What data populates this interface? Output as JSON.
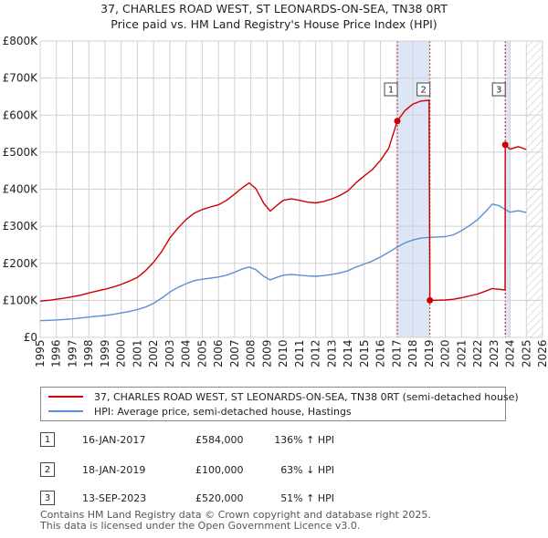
{
  "chart_data": {
    "type": "line",
    "title": "37, CHARLES ROAD WEST, ST LEONARDS-ON-SEA, TN38 0RT",
    "subtitle": "Price paid vs. HM Land Registry's House Price Index (HPI)",
    "xlim": [
      1995.0,
      2026.0
    ],
    "ylim": [
      0,
      800000
    ],
    "x_ticks": [
      1995,
      1996,
      1997,
      1998,
      1999,
      2000,
      2001,
      2002,
      2003,
      2004,
      2005,
      2006,
      2007,
      2008,
      2009,
      2010,
      2011,
      2012,
      2013,
      2014,
      2015,
      2016,
      2017,
      2018,
      2019,
      2020,
      2021,
      2022,
      2023,
      2024,
      2025,
      2026
    ],
    "y_ticks": [
      {
        "value": 0,
        "label": "£0"
      },
      {
        "value": 100000,
        "label": "£100K"
      },
      {
        "value": 200000,
        "label": "£200K"
      },
      {
        "value": 300000,
        "label": "£300K"
      },
      {
        "value": 400000,
        "label": "£400K"
      },
      {
        "value": 500000,
        "label": "£500K"
      },
      {
        "value": 600000,
        "label": "£600K"
      },
      {
        "value": 700000,
        "label": "£700K"
      },
      {
        "value": 800000,
        "label": "£800K"
      }
    ],
    "grid": true,
    "colors": {
      "property": "#cc0000",
      "hpi": "#5b8fd4",
      "shade": "#dde6f7",
      "marker_line": "#cc0000",
      "future_hatch": "#c5c5c5"
    },
    "shaded_spans": [
      [
        2017.04,
        2019.05
      ],
      [
        2023.7,
        2024.0
      ]
    ],
    "future_from": 2025.0,
    "series": [
      {
        "name": "HPI: Average price, semi-detached house, Hastings",
        "points": [
          [
            1995.0,
            45000
          ],
          [
            1995.5,
            46000
          ],
          [
            1996.0,
            47000
          ],
          [
            1996.5,
            48500
          ],
          [
            1997.0,
            50000
          ],
          [
            1997.5,
            52500
          ],
          [
            1998.0,
            55000
          ],
          [
            1998.5,
            57000
          ],
          [
            1999.0,
            59000
          ],
          [
            1999.5,
            62000
          ],
          [
            2000.0,
            66000
          ],
          [
            2000.5,
            70000
          ],
          [
            2001.0,
            75000
          ],
          [
            2001.5,
            82000
          ],
          [
            2002.0,
            92000
          ],
          [
            2002.5,
            106000
          ],
          [
            2003.0,
            122000
          ],
          [
            2003.5,
            135000
          ],
          [
            2004.0,
            145000
          ],
          [
            2004.5,
            153000
          ],
          [
            2005.0,
            157000
          ],
          [
            2005.5,
            160000
          ],
          [
            2006.0,
            163000
          ],
          [
            2006.5,
            168000
          ],
          [
            2007.0,
            176000
          ],
          [
            2007.5,
            185000
          ],
          [
            2007.9,
            190000
          ],
          [
            2008.3,
            183000
          ],
          [
            2008.8,
            165000
          ],
          [
            2009.2,
            155000
          ],
          [
            2009.6,
            162000
          ],
          [
            2010.0,
            168000
          ],
          [
            2010.5,
            170000
          ],
          [
            2011.0,
            168000
          ],
          [
            2011.5,
            166000
          ],
          [
            2012.0,
            165000
          ],
          [
            2012.5,
            167000
          ],
          [
            2013.0,
            170000
          ],
          [
            2013.5,
            174000
          ],
          [
            2014.0,
            180000
          ],
          [
            2014.5,
            190000
          ],
          [
            2015.0,
            198000
          ],
          [
            2015.5,
            206000
          ],
          [
            2016.0,
            217000
          ],
          [
            2016.5,
            230000
          ],
          [
            2017.0,
            243000
          ],
          [
            2017.5,
            255000
          ],
          [
            2018.0,
            263000
          ],
          [
            2018.5,
            268000
          ],
          [
            2019.0,
            270000
          ],
          [
            2019.5,
            271000
          ],
          [
            2020.0,
            272000
          ],
          [
            2020.5,
            277000
          ],
          [
            2021.0,
            288000
          ],
          [
            2021.5,
            302000
          ],
          [
            2022.0,
            318000
          ],
          [
            2022.5,
            340000
          ],
          [
            2022.9,
            360000
          ],
          [
            2023.3,
            356000
          ],
          [
            2023.7,
            345000
          ],
          [
            2024.0,
            338000
          ],
          [
            2024.5,
            342000
          ],
          [
            2025.0,
            337000
          ]
        ]
      },
      {
        "name": "37, CHARLES ROAD WEST, ST LEONARDS-ON-SEA, TN38 0RT (semi-detached house)",
        "points": [
          [
            1995.0,
            98000
          ],
          [
            1995.5,
            100000
          ],
          [
            1996.0,
            103000
          ],
          [
            1996.5,
            106000
          ],
          [
            1997.0,
            110000
          ],
          [
            1997.5,
            114000
          ],
          [
            1998.0,
            120000
          ],
          [
            1998.5,
            125000
          ],
          [
            1999.0,
            130000
          ],
          [
            1999.5,
            136000
          ],
          [
            2000.0,
            143000
          ],
          [
            2000.5,
            152000
          ],
          [
            2001.0,
            162000
          ],
          [
            2001.5,
            180000
          ],
          [
            2002.0,
            203000
          ],
          [
            2002.5,
            232000
          ],
          [
            2003.0,
            268000
          ],
          [
            2003.5,
            295000
          ],
          [
            2004.0,
            318000
          ],
          [
            2004.5,
            335000
          ],
          [
            2005.0,
            345000
          ],
          [
            2005.5,
            352000
          ],
          [
            2006.0,
            358000
          ],
          [
            2006.5,
            370000
          ],
          [
            2007.0,
            387000
          ],
          [
            2007.5,
            405000
          ],
          [
            2007.9,
            417000
          ],
          [
            2008.3,
            402000
          ],
          [
            2008.8,
            362000
          ],
          [
            2009.2,
            341000
          ],
          [
            2009.6,
            356000
          ],
          [
            2010.0,
            370000
          ],
          [
            2010.5,
            374000
          ],
          [
            2011.0,
            370000
          ],
          [
            2011.5,
            365000
          ],
          [
            2012.0,
            363000
          ],
          [
            2012.5,
            367000
          ],
          [
            2013.0,
            374000
          ],
          [
            2013.5,
            383000
          ],
          [
            2014.0,
            396000
          ],
          [
            2014.5,
            418000
          ],
          [
            2015.0,
            436000
          ],
          [
            2015.5,
            453000
          ],
          [
            2016.0,
            478000
          ],
          [
            2016.5,
            510000
          ],
          [
            2017.04,
            584000
          ],
          [
            2017.5,
            612000
          ],
          [
            2018.0,
            630000
          ],
          [
            2018.5,
            638000
          ],
          [
            2019.0,
            640000
          ],
          [
            2019.05,
            100000
          ],
          [
            2019.5,
            100500
          ],
          [
            2020.0,
            101000
          ],
          [
            2020.5,
            103000
          ],
          [
            2021.0,
            107000
          ],
          [
            2021.5,
            112000
          ],
          [
            2022.0,
            117000
          ],
          [
            2022.5,
            125000
          ],
          [
            2022.9,
            132000
          ],
          [
            2023.3,
            130000
          ],
          [
            2023.69,
            128000
          ],
          [
            2023.7,
            520000
          ],
          [
            2024.0,
            508000
          ],
          [
            2024.5,
            515000
          ],
          [
            2025.0,
            507000
          ]
        ]
      }
    ],
    "sales": [
      {
        "n": "1",
        "x": 2017.04,
        "price": 584000,
        "date": "16-JAN-2017",
        "price_label": "£584,000",
        "pct": "136% ↑ HPI"
      },
      {
        "n": "2",
        "x": 2019.05,
        "price": 100000,
        "date": "18-JAN-2019",
        "price_label": "£100,000",
        "pct": "63% ↓ HPI"
      },
      {
        "n": "3",
        "x": 2023.7,
        "price": 520000,
        "date": "13-SEP-2023",
        "price_label": "£520,000",
        "pct": "51% ↑ HPI"
      }
    ]
  },
  "legend": {
    "property_label": "37, CHARLES ROAD WEST, ST LEONARDS-ON-SEA, TN38 0RT (semi-detached house)",
    "hpi_label": "HPI: Average price, semi-detached house, Hastings"
  },
  "footer": {
    "line1": "Contains HM Land Registry data © Crown copyright and database right 2025.",
    "line2": "This data is licensed under the Open Government Licence v3.0."
  }
}
